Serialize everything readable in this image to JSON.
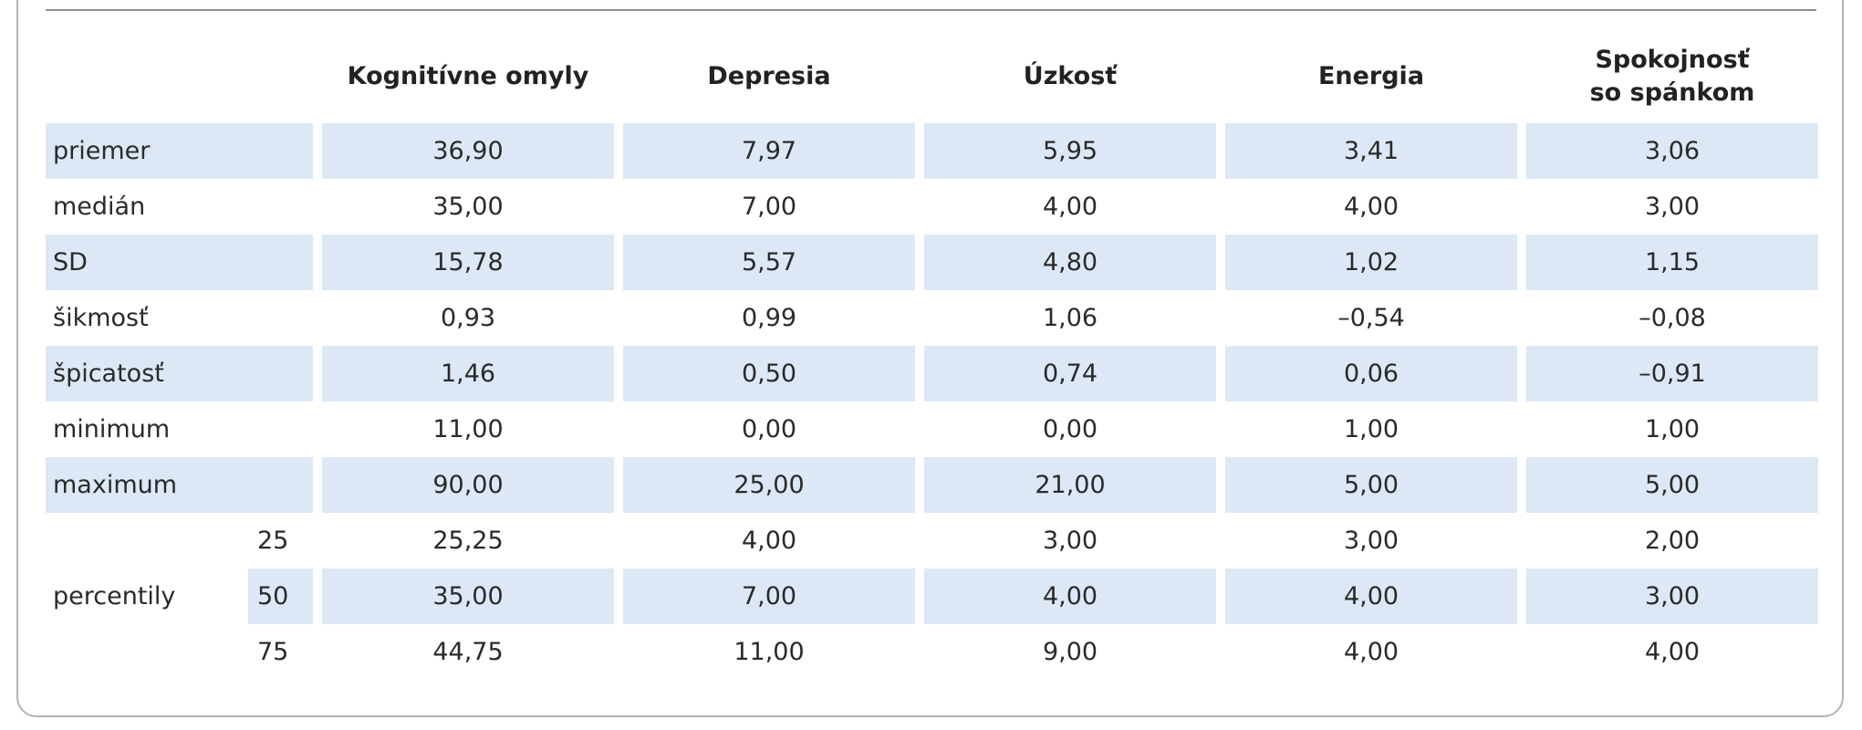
{
  "columns": [
    "Kognitívne omyly",
    "Depresia",
    "Úzkosť",
    "Energia",
    "Spokojnosť\nso spánkom"
  ],
  "rows": [
    {
      "label": "priemer",
      "values": [
        "36,90",
        "7,97",
        "5,95",
        "3,41",
        "3,06"
      ]
    },
    {
      "label": "medián",
      "values": [
        "35,00",
        "7,00",
        "4,00",
        "4,00",
        "3,00"
      ]
    },
    {
      "label": "SD",
      "values": [
        "15,78",
        "5,57",
        "4,80",
        "1,02",
        "1,15"
      ]
    },
    {
      "label": "šikmosť",
      "values": [
        "0,93",
        "0,99",
        "1,06",
        "–0,54",
        "–0,08"
      ]
    },
    {
      "label": "špicatosť",
      "values": [
        "1,46",
        "0,50",
        "0,74",
        "0,06",
        "–0,91"
      ]
    },
    {
      "label": "minimum",
      "values": [
        "11,00",
        "0,00",
        "0,00",
        "1,00",
        "1,00"
      ]
    },
    {
      "label": "maximum",
      "values": [
        "90,00",
        "25,00",
        "21,00",
        "5,00",
        "5,00"
      ]
    }
  ],
  "percentiles": {
    "label": "percentily",
    "rows": [
      {
        "p": "25",
        "values": [
          "25,25",
          "4,00",
          "3,00",
          "3,00",
          "2,00"
        ]
      },
      {
        "p": "50",
        "values": [
          "35,00",
          "7,00",
          "4,00",
          "4,00",
          "3,00"
        ]
      },
      {
        "p": "75",
        "values": [
          "44,75",
          "11,00",
          "9,00",
          "4,00",
          "4,00"
        ]
      }
    ]
  },
  "colors": {
    "shade": "#dde8f6",
    "border": "#b3b3b3",
    "rule": "#8f8f8f",
    "text": "#2a2a2a"
  }
}
